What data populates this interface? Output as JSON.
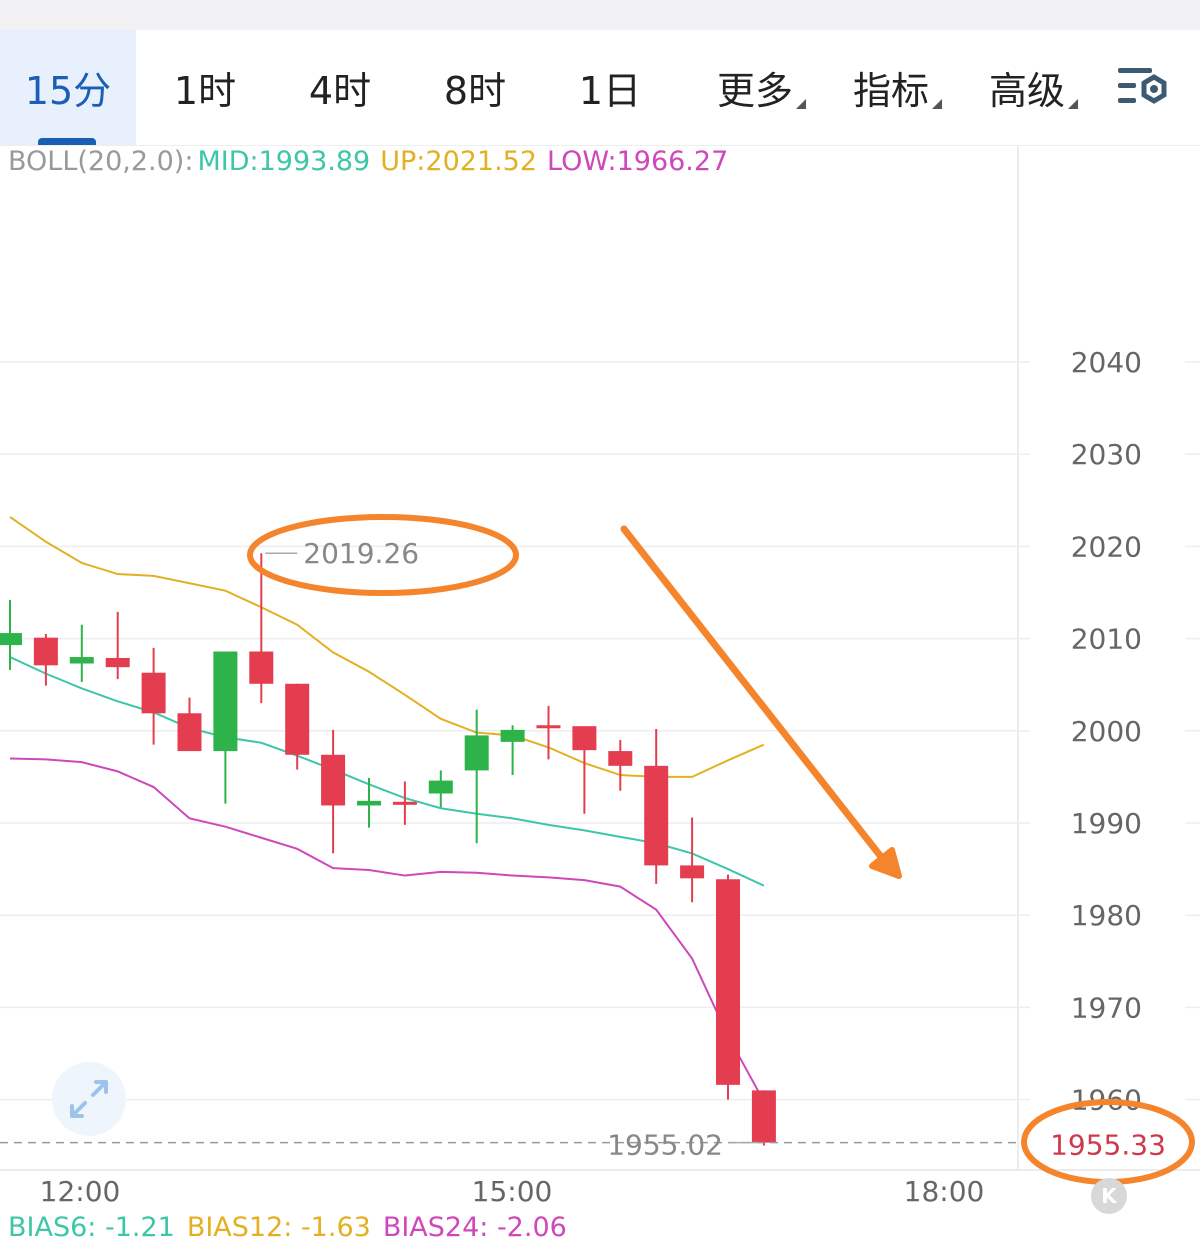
{
  "tabs": [
    {
      "label": "15分",
      "active": true
    },
    {
      "label": "1时"
    },
    {
      "label": "4时"
    },
    {
      "label": "8时"
    },
    {
      "label": "1日"
    },
    {
      "label": "更多",
      "dropdown": true
    },
    {
      "label": "指标",
      "dropdown": true
    },
    {
      "label": "高级",
      "dropdown": true
    }
  ],
  "settings_icon": "chart-settings-icon",
  "expand_icon": "expand-arrows-icon",
  "k_button_label": "K",
  "boll": {
    "label": "BOLL(20,2.0):",
    "mid": "MID:1993.89",
    "up": "UP:2021.52",
    "low": "LOW:1966.27"
  },
  "bias": {
    "b6": "BIAS6: -1.21",
    "b12": "BIAS12: -1.63",
    "b24": "BIAS24: -2.06"
  },
  "colors": {
    "up_candle": "#2db34a",
    "down_candle": "#e43d4f",
    "mid": "#3ec6a8",
    "up": "#e2b022",
    "low": "#cf48b9",
    "accent": "#1a5fb4",
    "annotation": "#f5852d"
  },
  "chart_data": {
    "type": "candlestick",
    "interval": "15分",
    "y_ticks": [
      2040,
      2030,
      2020,
      2010,
      2000,
      1990,
      1980,
      1970,
      1960
    ],
    "x_ticks": [
      "12:00",
      "15:00",
      "18:00"
    ],
    "high_marker": "2019.26",
    "low_marker": "1955.02",
    "last_price": "1955.33",
    "candles": [
      {
        "o": 2009.3,
        "c": 2010.6,
        "h": 2014.2,
        "l": 2006.6
      },
      {
        "o": 2010.1,
        "c": 2007.1,
        "h": 2010.5,
        "l": 2004.9
      },
      {
        "o": 2007.3,
        "c": 2008.0,
        "h": 2011.5,
        "l": 2005.3
      },
      {
        "o": 2007.9,
        "c": 2006.9,
        "h": 2012.9,
        "l": 2005.6
      },
      {
        "o": 2006.3,
        "c": 2001.9,
        "h": 2009.0,
        "l": 1998.5
      },
      {
        "o": 2001.9,
        "c": 1997.8,
        "h": 2003.6,
        "l": 1997.8
      },
      {
        "o": 1997.8,
        "c": 2008.6,
        "h": 2008.6,
        "l": 1992.1
      },
      {
        "o": 2008.6,
        "c": 2005.1,
        "h": 2019.26,
        "l": 2003.0
      },
      {
        "o": 2005.1,
        "c": 1997.4,
        "h": 2005.1,
        "l": 1995.8
      },
      {
        "o": 1997.4,
        "c": 1991.9,
        "h": 2000.1,
        "l": 1986.7
      },
      {
        "o": 1991.9,
        "c": 1992.4,
        "h": 1994.9,
        "l": 1989.5
      },
      {
        "o": 1992.3,
        "c": 1992.3,
        "h": 1994.5,
        "l": 1989.8
      },
      {
        "o": 1993.2,
        "c": 1994.6,
        "h": 1995.7,
        "l": 1991.7
      },
      {
        "o": 1995.7,
        "c": 1999.5,
        "h": 2002.3,
        "l": 1987.8
      },
      {
        "o": 1998.8,
        "c": 2000.1,
        "h": 2000.6,
        "l": 1995.2
      },
      {
        "o": 2000.6,
        "c": 2000.6,
        "h": 2002.7,
        "l": 1996.9
      },
      {
        "o": 2000.5,
        "c": 1997.9,
        "h": 2000.5,
        "l": 1991.0
      },
      {
        "o": 1997.8,
        "c": 1996.2,
        "h": 1999.0,
        "l": 1993.5
      },
      {
        "o": 1996.2,
        "c": 1985.4,
        "h": 2000.2,
        "l": 1983.4
      },
      {
        "o": 1985.4,
        "c": 1984.0,
        "h": 1990.6,
        "l": 1981.4
      },
      {
        "o": 1983.9,
        "c": 1961.6,
        "h": 1984.4,
        "l": 1960.0
      },
      {
        "o": 1961.0,
        "c": 1955.33,
        "h": 1961.0,
        "l": 1955.02
      }
    ],
    "boll_up": [
      2023.2,
      2020.5,
      2018.2,
      2017.0,
      2016.8,
      2016.0,
      2015.2,
      2013.4,
      2011.5,
      2008.5,
      2006.4,
      2003.9,
      2001.3,
      1999.8,
      1999.5,
      1998.2,
      1996.5,
      1995.2,
      1995.0,
      1995.0,
      1996.8,
      1998.5
    ],
    "boll_mid": [
      2008.0,
      2006.2,
      2004.6,
      2003.2,
      2002.0,
      2000.3,
      1999.3,
      1998.7,
      1997.3,
      1995.8,
      1994.2,
      1992.7,
      1991.6,
      1991.0,
      1990.5,
      1989.8,
      1989.2,
      1988.5,
      1987.8,
      1986.7,
      1985.0,
      1983.2
    ],
    "boll_low": [
      1997.0,
      1996.9,
      1996.6,
      1995.6,
      1993.9,
      1990.5,
      1989.6,
      1988.4,
      1987.2,
      1985.1,
      1984.9,
      1984.3,
      1984.7,
      1984.6,
      1984.3,
      1984.1,
      1983.8,
      1983.1,
      1980.6,
      1975.3,
      1966.9,
      1959.8
    ]
  }
}
